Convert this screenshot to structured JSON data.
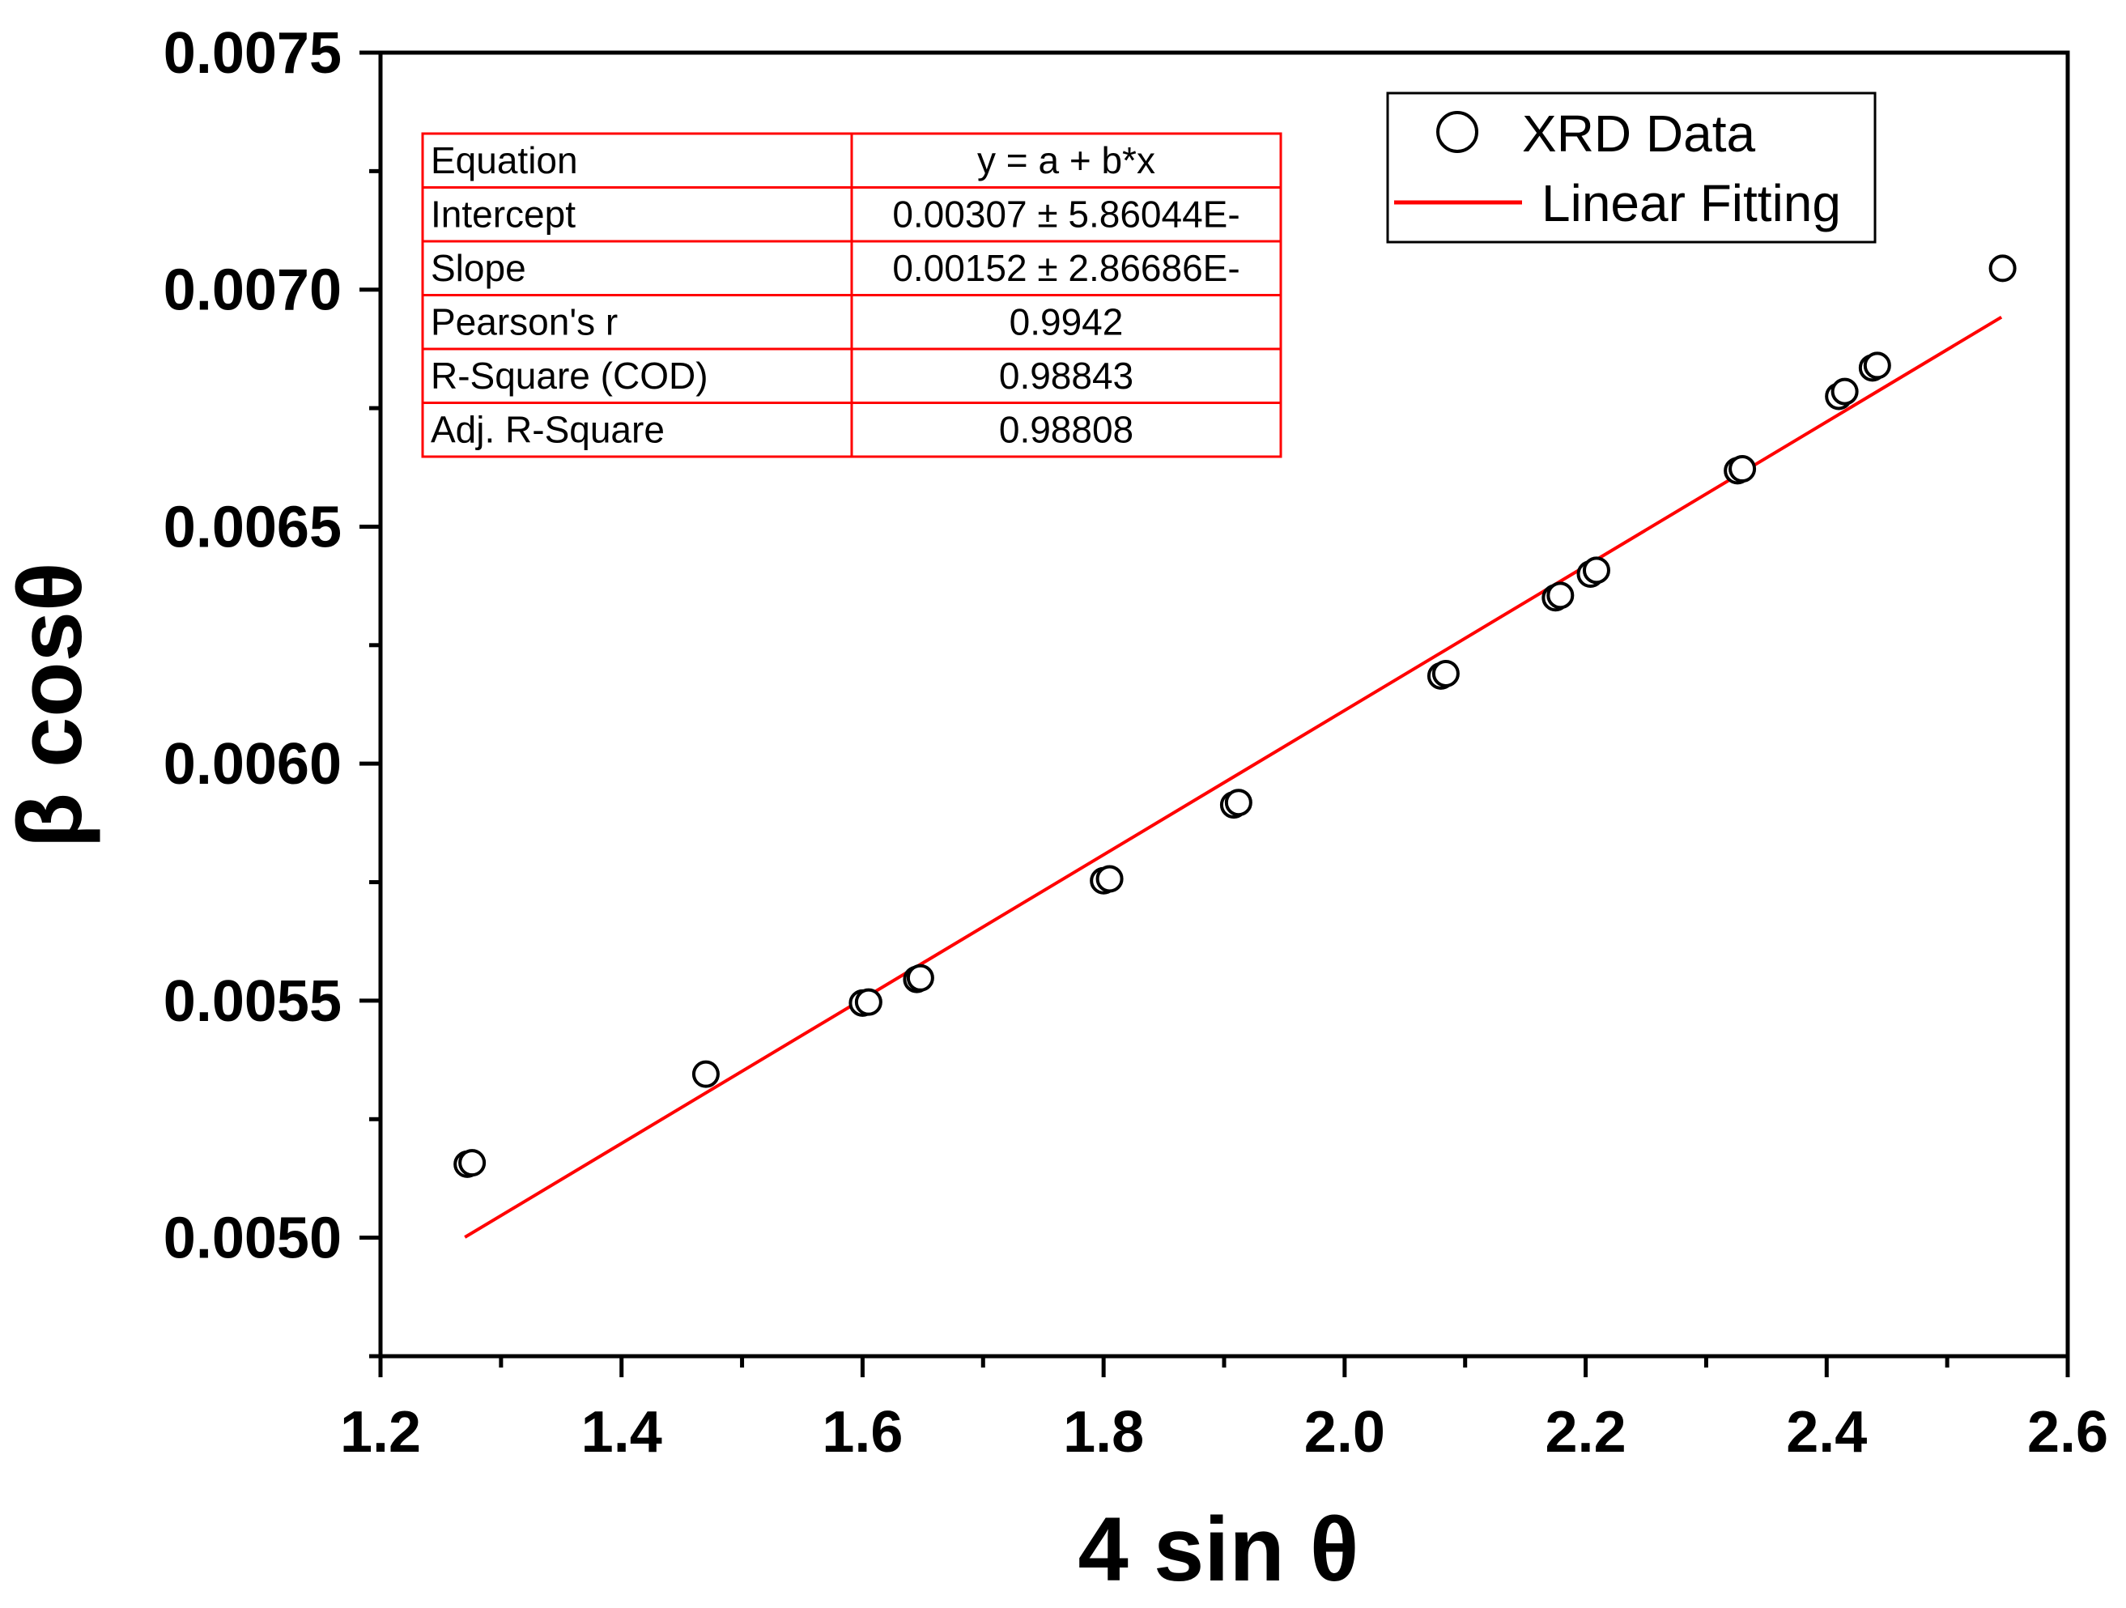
{
  "chart_data": {
    "type": "scatter",
    "xlabel": "4 sin θ",
    "ylabel": "β cosθ",
    "xlim": [
      1.2,
      2.6
    ],
    "ylim": [
      0.00475,
      0.0075
    ],
    "x_ticks": [
      "1.2",
      "1.4",
      "1.6",
      "1.8",
      "2.0",
      "2.2",
      "2.4",
      "2.6"
    ],
    "y_ticks": [
      "0.0050",
      "0.0055",
      "0.0060",
      "0.0065",
      "0.0070",
      "0.0075"
    ],
    "series": [
      {
        "name": "XRD Data",
        "kind": "scatter",
        "marker": "open-circle",
        "color": "#000000",
        "points": [
          [
            1.272,
            0.005155
          ],
          [
            1.276,
            0.005158
          ],
          [
            1.47,
            0.005345
          ],
          [
            1.6,
            0.005495
          ],
          [
            1.605,
            0.005497
          ],
          [
            1.645,
            0.005545
          ],
          [
            1.648,
            0.005548
          ],
          [
            1.8,
            0.005753
          ],
          [
            1.805,
            0.005757
          ],
          [
            1.908,
            0.005913
          ],
          [
            1.912,
            0.005918
          ],
          [
            2.08,
            0.006185
          ],
          [
            2.084,
            0.00619
          ],
          [
            2.175,
            0.00635
          ],
          [
            2.179,
            0.006355
          ],
          [
            2.204,
            0.0064
          ],
          [
            2.209,
            0.006408
          ],
          [
            2.326,
            0.006618
          ],
          [
            2.33,
            0.006622
          ],
          [
            2.41,
            0.006775
          ],
          [
            2.415,
            0.006785
          ],
          [
            2.438,
            0.006835
          ],
          [
            2.442,
            0.00684
          ],
          [
            2.546,
            0.007045
          ]
        ]
      },
      {
        "name": "Linear Fitting",
        "kind": "line",
        "color": "#ff0000",
        "x": [
          1.27,
          2.545
        ],
        "y": [
          0.005001,
          0.006942
        ]
      }
    ],
    "fit_table": {
      "rows": [
        [
          "Equation",
          "y = a + b*x"
        ],
        [
          "Intercept",
          "0.00307 ± 5.86044E-"
        ],
        [
          "Slope",
          "0.00152 ± 2.86686E-"
        ],
        [
          "Pearson's r",
          "0.9942"
        ],
        [
          "R-Square (COD)",
          "0.98843"
        ],
        [
          "Adj. R-Square",
          "0.98808"
        ]
      ]
    },
    "legend_position": "top-right",
    "grid": false
  }
}
